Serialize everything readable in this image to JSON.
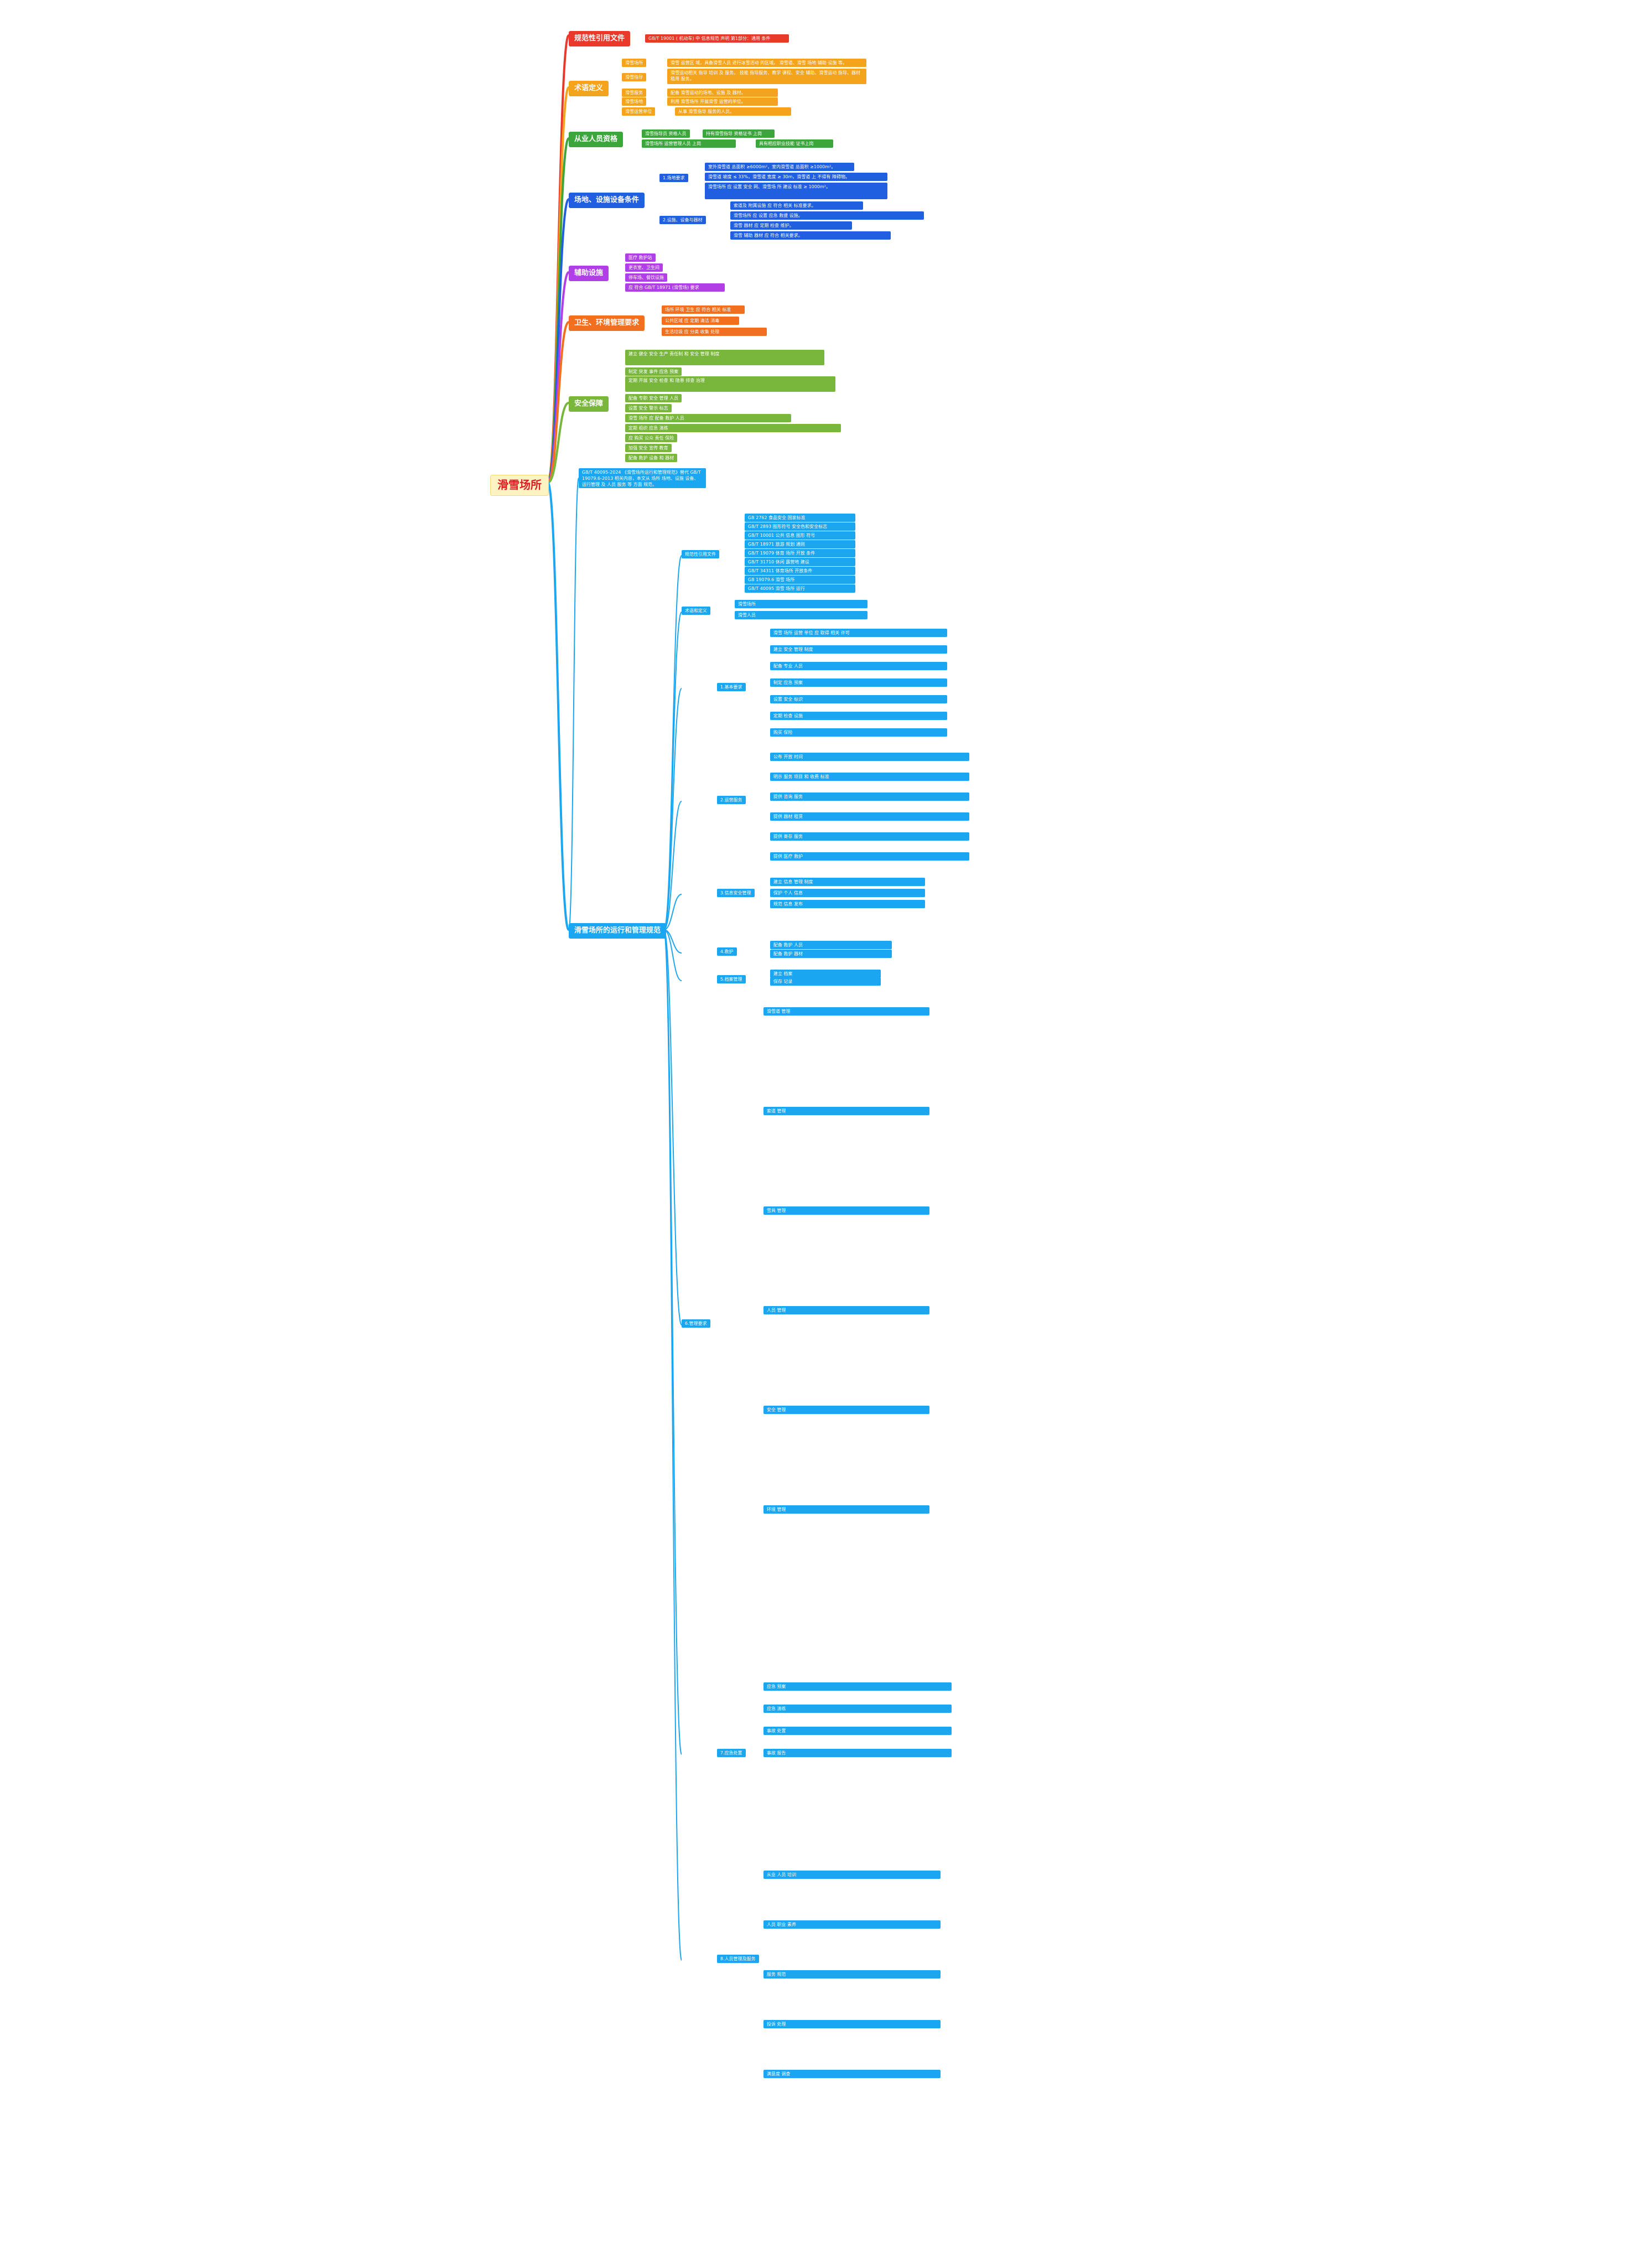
{
  "root": {
    "label": "滑雪场所"
  },
  "colors": {
    "red": "#e8392a",
    "orange": "#f4a31d",
    "green": "#3ca63c",
    "blue": "#1f5fe0",
    "purple": "#b03fe8",
    "deep_orange": "#f26f1f",
    "olive": "#78b63c",
    "cyan": "#1aa6f0"
  },
  "branches": {
    "b1": {
      "label": "规范性引用文件",
      "items": [
        "GB/T 19001 ( 机动车) 中 信息规范 声明 第1部分：通用 条件"
      ]
    },
    "b2": {
      "label": "术语定义",
      "items": [
        "滑雪场所",
        "滑雪指导",
        "滑雪服务",
        "滑雪场地",
        "滑雪运营单位",
        "滑雪人员"
      ],
      "notes": [
        "滑雪 运营区 域，具备滑雪人员 进行冰雪活动 的区域。 滑雪道、滑雪 场地 辅助 设施 等。",
        "滑雪运动相关 指导 培训 及 服务。 技能 指导服务、教学 课程、安全 辅助、滑雪运动 指导、器材租用 服务。",
        "配备 滑雪运动的场地、设施 及 器材。",
        "利用 滑雪场所 开展滑雪 运营的单位。",
        "从事 滑雪指导 服务的人员。"
      ]
    },
    "b3": {
      "label": "从业人员资格",
      "items": [
        "滑雪指导员 资格人员",
        "滑雪场所 运营管理人员 上岗"
      ],
      "notes": [
        "持有滑雪指导 资格证书 上岗",
        "具有相应职业技能 证书上岗"
      ]
    },
    "b4": {
      "label": "场地、设施设备条件",
      "items": [
        "1.场地要求",
        "2.设施、设备与器材"
      ],
      "notes": [
        "室外滑雪道 总面积 ≥6000m²，室内滑雪道 总面积 ≥1000m²。",
        "滑雪道 坡度 ≤ 33%，滑雪道 宽度 ≥ 30m，滑雪道 上 不得有 障碍物。",
        "滑雪场所 应 设置 安全 网、滑雪场 所 建设 标准 ≥ 1000m²。",
        "索道及 附属设施 应 符合 相关 标准要求。",
        "滑雪场所 应 设置 应急 救援 设施。",
        "滑雪 器材 应 定期 检查 维护。",
        "滑雪 辅助 器材 应 符合 相关要求。"
      ]
    },
    "b5": {
      "label": "辅助设施",
      "items": [
        "医疗 救护站",
        "更衣室、卫生间",
        "停车场、餐饮设施",
        "应 符合 GB/T 18971 (滑雪场) 要求"
      ]
    },
    "b6": {
      "label": "卫生、环境管理要求",
      "items": [
        "场所 环境 卫生 应 符合 相关 标准",
        "公共区域 应 定期 清洁 消毒",
        "生活垃圾 应 分类 收集 处理"
      ]
    },
    "b7": {
      "label": "安全保障",
      "items": [
        "建立 健全 安全 生产 责任制 和 安全 管理 制度",
        "制定 突发 事件 应急 预案",
        "定期 开展 安全 检查 和 隐患 排查 治理",
        "配备 专职 安全 管理 人员",
        "设置 安全 警示 标志",
        "滑雪 场所 应 配备 救护 人员",
        "定期 组织 应急 演练",
        "应 购买 公众 责任 保险",
        "加强 安全 宣传 教育",
        "配备 救护 设备 和 器材"
      ]
    },
    "b8": {
      "label": "滑雪场所的运行和管理规范",
      "intro": "GB/T 40095-2024 《滑雪场所运行和管理规范》替代 GB/T 19079.6-2013 相关内容，本文从 场所 场地、设施 设备、运行管理 及 人员 服务 等 方面 规范。",
      "sub": [
        {
          "label": "规范性引用文件",
          "items": [
            "GB 2762 食品安全 国家标准",
            "GB/T 2893 图形符号 安全色和安全标志",
            "GB/T 10001 公共 信息 图形 符号",
            "GB/T 18971 旅游 规划 通则",
            "GB/T 19079 体育 场所 开放 条件",
            "GB/T 31710 休闲 露营地 建设",
            "GB/T 34311 体育场所 开放条件",
            "GB 19079.6 滑雪 场所",
            "GB/T 40095 滑雪 场所 运行"
          ]
        },
        {
          "label": "术语和定义",
          "items": [
            "滑雪场所",
            "滑雪人员"
          ]
        },
        {
          "label": "1.基本要求",
          "items": [
            "滑雪 场所 运营 单位 应 取得 相关 许可",
            "建立 安全 管理 制度",
            "配备 专业 人员",
            "制定 应急 预案",
            "设置 安全 标识",
            "定期 检查 设施",
            "购买 保险"
          ]
        },
        {
          "label": "2.运营服务",
          "items": [
            "公布 开放 时间",
            "明示 服务 项目 和 收费 标准",
            "提供 咨询 服务",
            "提供 器材 租赁",
            "提供 寄存 服务",
            "提供 医疗 救护"
          ]
        },
        {
          "label": "3.信息安全管理",
          "items": [
            "建立 信息 管理 制度",
            "保护 个人 信息",
            "规范 信息 发布"
          ]
        },
        {
          "label": "4.救护",
          "items": [
            "配备 救护 人员",
            "配备 救护 器材"
          ]
        },
        {
          "label": "5.档案管理",
          "items": [
            "建立 档案",
            "保存 记录"
          ]
        },
        {
          "label": "6.管理要求",
          "items": [
            "滑雪道 管理",
            "索道 管理",
            "雪具 管理",
            "人员 管理",
            "安全 管理",
            "环境 管理"
          ]
        },
        {
          "label": "7.应急处置",
          "items": [
            "应急 预案",
            "应急 演练",
            "事故 处置",
            "事故 报告"
          ]
        },
        {
          "label": "8.人员管理及服务",
          "items": [
            "从业 人员 培训",
            "人员 职业 素养",
            "服务 规范",
            "投诉 处理",
            "满意度 调查"
          ]
        }
      ]
    }
  }
}
